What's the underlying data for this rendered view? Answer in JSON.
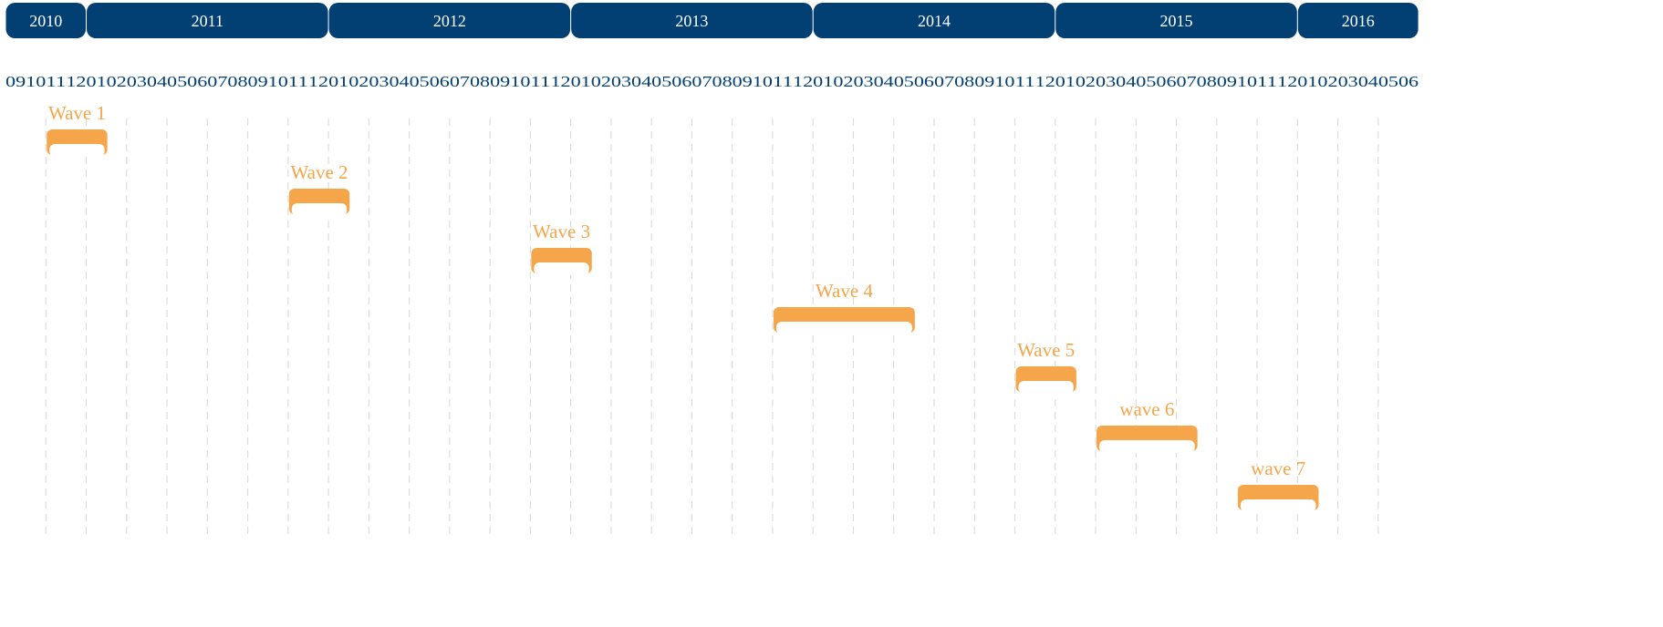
{
  "years": [
    "2010",
    "2011",
    "2012",
    "2013",
    "2014",
    "2015",
    "2016"
  ],
  "months": [
    "09",
    "10",
    "11",
    "12",
    "01",
    "02",
    "03",
    "04",
    "05",
    "06",
    "07",
    "08",
    "09",
    "10",
    "11",
    "12",
    "01",
    "02",
    "03",
    "04",
    "05",
    "06",
    "07",
    "08",
    "09",
    "10",
    "11",
    "12",
    "01",
    "02",
    "03",
    "04",
    "05",
    "06",
    "07",
    "08",
    "09",
    "10",
    "11",
    "12",
    "01",
    "02",
    "03",
    "04",
    "05",
    "06",
    "07",
    "08",
    "09",
    "10",
    "11",
    "12",
    "01",
    "02",
    "03",
    "04",
    "05",
    "06",
    "07",
    "08",
    "09",
    "10",
    "11",
    "12",
    "01",
    "02",
    "03",
    "04",
    "05",
    "06"
  ],
  "waves": [
    "Wave 1",
    "Wave 2",
    "Wave 3",
    "Wave 4",
    "Wave 5",
    "wave 6",
    "wave 7"
  ]
}
